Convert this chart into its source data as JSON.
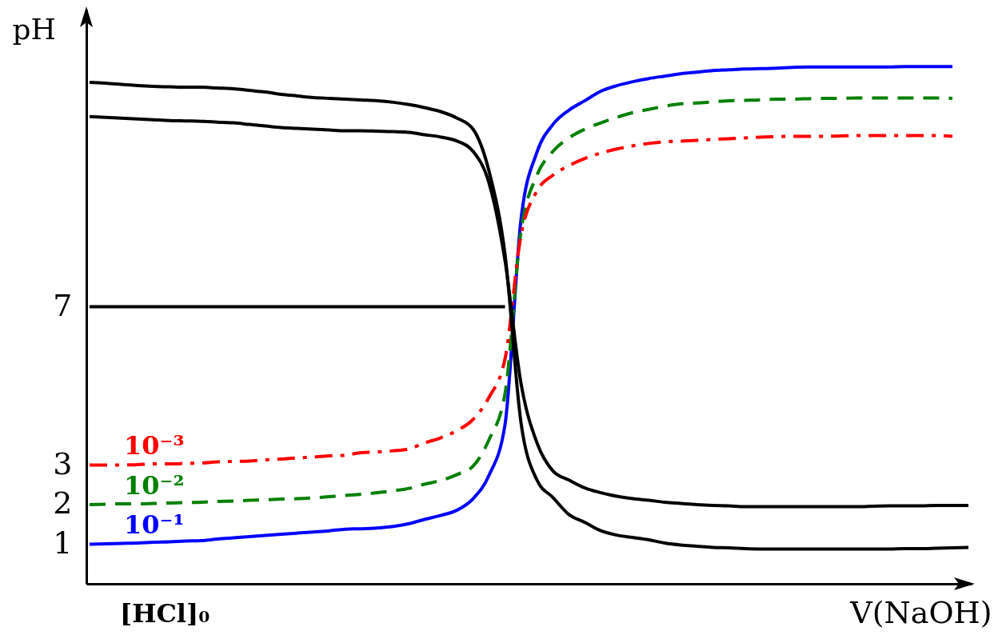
{
  "chart_data": {
    "type": "line",
    "xlabel": "V(NaOH)",
    "ylabel": "pH",
    "annotations": [
      "[HCl]₀"
    ],
    "tick_labels": "y",
    "categories": [
      null,
      null,
      null,
      null,
      null,
      null,
      null,
      null,
      null,
      null,
      null,
      null,
      null,
      null,
      null,
      null,
      null,
      null,
      null,
      null,
      null,
      null,
      null,
      null,
      null,
      null,
      null,
      null,
      null,
      null,
      null,
      null,
      null,
      null,
      null,
      null,
      null,
      null,
      null,
      null,
      null,
      null,
      null,
      null,
      null,
      null,
      null,
      null,
      null,
      null,
      null,
      null,
      null,
      null,
      null,
      null
    ],
    "ylim": [
      0,
      14.5
    ],
    "yticks": [
      1,
      2,
      3,
      7
    ],
    "series": [
      {
        "color": "#000000",
        "values": [
          7,
          7,
          7,
          7,
          7,
          7,
          7,
          7,
          7,
          7,
          7,
          7,
          7,
          7,
          7,
          7,
          7,
          7,
          7,
          7,
          7,
          7,
          7,
          7,
          7,
          7,
          7,
          null,
          null,
          null,
          null,
          null,
          null,
          null,
          null,
          null,
          null,
          null,
          null,
          null,
          null,
          null,
          null,
          null,
          null,
          null,
          null,
          null,
          null,
          null,
          null,
          null,
          null,
          null,
          null,
          null
        ]
      },
      {
        "name": "10⁻¹",
        "color": "#0000ff",
        "line_style": "solid",
        "values": [
          1.0,
          1.01,
          1.02,
          1.03,
          1.05,
          1.06,
          1.08,
          1.09,
          1.13,
          1.16,
          1.19,
          1.22,
          1.25,
          1.28,
          1.31,
          1.34,
          1.38,
          1.39,
          1.41,
          1.45,
          1.52,
          1.63,
          1.73,
          1.86,
          2.15,
          2.74,
          4.02,
          9.2,
          10.9,
          11.6,
          11.96,
          12.2,
          12.44,
          12.58,
          12.68,
          12.76,
          12.82,
          12.88,
          12.92,
          12.96,
          12.98,
          13.0,
          13.01,
          13.02,
          13.04,
          13.05,
          13.05,
          13.05,
          13.05,
          13.05,
          13.05,
          13.06,
          13.06,
          13.06,
          13.06,
          null
        ]
      },
      {
        "name": "10⁻²",
        "color": "#008000",
        "line_style": "dashed",
        "values": [
          2.0,
          2.01,
          2.02,
          2.02,
          2.03,
          2.04,
          2.05,
          2.06,
          2.08,
          2.09,
          2.11,
          2.12,
          2.14,
          2.15,
          2.17,
          2.2,
          2.23,
          2.26,
          2.3,
          2.35,
          2.41,
          2.52,
          2.61,
          2.76,
          2.97,
          3.64,
          4.8,
          8.9,
          10.32,
          10.92,
          11.26,
          11.48,
          11.64,
          11.78,
          11.9,
          11.98,
          12.06,
          12.12,
          12.14,
          12.17,
          12.2,
          12.21,
          12.22,
          12.24,
          12.24,
          12.25,
          12.26,
          12.26,
          12.27,
          12.27,
          12.27,
          12.27,
          12.27,
          12.27,
          12.26,
          null
        ]
      },
      {
        "name": "10⁻³",
        "color": "#ff0000",
        "line_style": "dashdot",
        "values": [
          3.0,
          3.0,
          3.0,
          3.01,
          3.03,
          3.03,
          3.04,
          3.05,
          3.08,
          3.09,
          3.1,
          3.13,
          3.15,
          3.18,
          3.2,
          3.23,
          3.25,
          3.31,
          3.33,
          3.36,
          3.41,
          3.56,
          3.69,
          3.87,
          4.15,
          4.71,
          5.68,
          8.8,
          9.92,
          10.32,
          10.56,
          10.74,
          10.88,
          10.98,
          11.06,
          11.12,
          11.16,
          11.18,
          11.2,
          11.22,
          11.24,
          11.26,
          11.28,
          11.29,
          11.3,
          11.3,
          11.3,
          11.31,
          11.32,
          11.32,
          11.32,
          11.32,
          11.32,
          11.32,
          11.3,
          null
        ]
      },
      {
        "color": "#000000",
        "values": [
          12.66,
          12.64,
          12.61,
          12.58,
          12.56,
          12.55,
          12.54,
          12.54,
          12.52,
          12.5,
          12.46,
          12.42,
          12.36,
          12.32,
          12.28,
          12.26,
          12.24,
          12.22,
          12.2,
          12.16,
          12.1,
          12.02,
          11.92,
          11.76,
          11.48,
          10.42,
          8.32,
          4.07,
          2.62,
          2.18,
          1.75,
          1.55,
          1.34,
          1.23,
          1.17,
          1.11,
          1.03,
          0.98,
          0.95,
          0.92,
          0.91,
          0.89,
          0.88,
          0.88,
          0.88,
          0.88,
          0.88,
          0.88,
          0.88,
          0.88,
          0.88,
          0.89,
          0.89,
          0.9,
          0.91,
          0.92
        ]
      },
      {
        "color": "#000000",
        "values": [
          11.8,
          11.78,
          11.76,
          11.74,
          11.72,
          11.7,
          11.69,
          11.68,
          11.66,
          11.64,
          11.6,
          11.56,
          11.52,
          11.5,
          11.48,
          11.46,
          11.44,
          11.44,
          11.43,
          11.42,
          11.4,
          11.34,
          11.28,
          11.18,
          10.92,
          10.12,
          8.16,
          5.06,
          3.56,
          2.85,
          2.62,
          2.42,
          2.3,
          2.21,
          2.15,
          2.11,
          2.06,
          2.03,
          2.0,
          1.98,
          1.97,
          1.95,
          1.95,
          1.95,
          1.95,
          1.95,
          1.95,
          1.95,
          1.95,
          1.96,
          1.97,
          1.97,
          1.97,
          1.98,
          1.98,
          1.98
        ]
      }
    ]
  }
}
